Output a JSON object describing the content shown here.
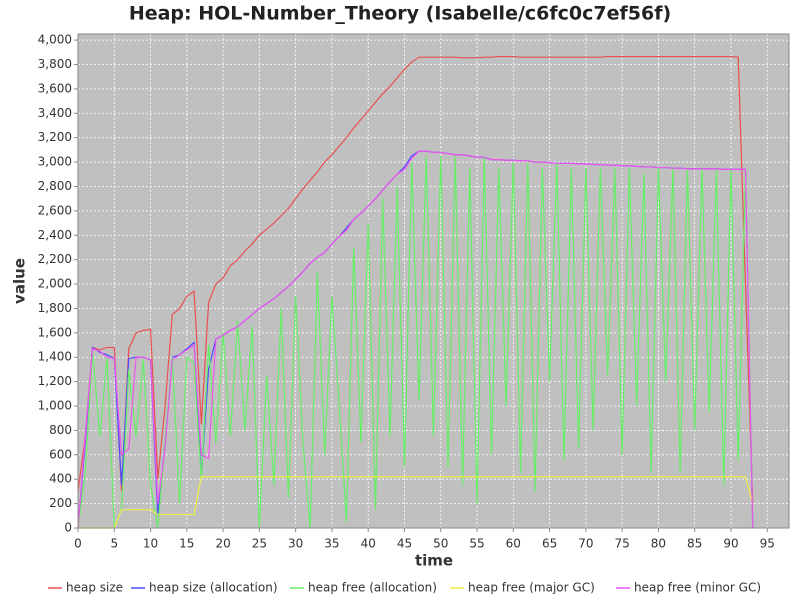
{
  "chart_data": {
    "type": "line",
    "title": "Heap: HOL-Number_Theory (Isabelle/c6fc0c7ef56f)",
    "x_label": "time",
    "y_label": "value",
    "xlim": [
      0,
      98
    ],
    "ylim": [
      0,
      4050
    ],
    "grid": true,
    "xticks": [
      0,
      5,
      10,
      15,
      20,
      25,
      30,
      35,
      40,
      45,
      50,
      55,
      60,
      65,
      70,
      75,
      80,
      85,
      90,
      95
    ],
    "yticks": [
      0,
      200,
      400,
      600,
      800,
      {
        "value": 1000,
        "label": "1,000"
      },
      {
        "value": 1200,
        "label": "1,200"
      },
      {
        "value": 1400,
        "label": "1,400"
      },
      {
        "value": 1600,
        "label": "1,600"
      },
      {
        "value": 1800,
        "label": "1,800"
      },
      {
        "value": 2000,
        "label": "2,000"
      },
      {
        "value": 2200,
        "label": "2,200"
      },
      {
        "value": 2400,
        "label": "2,400"
      },
      {
        "value": 2600,
        "label": "2,600"
      },
      {
        "value": 2800,
        "label": "2,800"
      },
      {
        "value": 3000,
        "label": "3,000"
      },
      {
        "value": 3200,
        "label": "3,200"
      },
      {
        "value": 3400,
        "label": "3,400"
      },
      {
        "value": 3600,
        "label": "3,600"
      },
      {
        "value": 3800,
        "label": "3,800"
      },
      {
        "value": 4000,
        "label": "4,000"
      }
    ],
    "x": [
      0,
      1,
      2,
      3,
      4,
      5,
      6,
      7,
      8,
      9,
      10,
      11,
      12,
      13,
      14,
      15,
      16,
      17,
      18,
      19,
      20,
      21,
      22,
      23,
      24,
      25,
      26,
      27,
      28,
      29,
      30,
      31,
      32,
      33,
      34,
      35,
      36,
      37,
      38,
      39,
      40,
      41,
      42,
      43,
      44,
      45,
      46,
      47,
      48,
      49,
      50,
      51,
      52,
      53,
      54,
      55,
      56,
      57,
      58,
      59,
      60,
      61,
      62,
      63,
      64,
      65,
      66,
      67,
      68,
      69,
      70,
      71,
      72,
      73,
      74,
      75,
      76,
      77,
      78,
      79,
      80,
      81,
      82,
      83,
      84,
      85,
      86,
      87,
      88,
      89,
      90,
      91,
      92,
      93
    ],
    "series": [
      {
        "name": "heap size",
        "color": "#e85050",
        "values": [
          300,
          750,
          1480,
          1460,
          1480,
          1480,
          300,
          1470,
          1600,
          1620,
          1630,
          400,
          1000,
          1750,
          1800,
          1900,
          1940,
          850,
          1850,
          2000,
          2050,
          2150,
          2200,
          2270,
          2330,
          2400,
          2450,
          2500,
          2560,
          2620,
          2700,
          2780,
          2850,
          2920,
          3000,
          3060,
          3130,
          3200,
          3280,
          3350,
          3420,
          3490,
          3560,
          3620,
          3690,
          3760,
          3820,
          3860,
          3860,
          3860,
          3860,
          3860,
          3860,
          3855,
          3855,
          3855,
          3860,
          3860,
          3865,
          3865,
          3865,
          3860,
          3860,
          3860,
          3860,
          3860,
          3860,
          3860,
          3860,
          3860,
          3860,
          3860,
          3860,
          3865,
          3865,
          3865,
          3865,
          3865,
          3865,
          3865,
          3865,
          3865,
          3865,
          3865,
          3865,
          3865,
          3865,
          3865,
          3865,
          3865,
          3865,
          3860,
          2000,
          200
        ]
      },
      {
        "name": "heap size (allocation)",
        "color": "#4a4aff",
        "values": [
          0,
          700,
          1480,
          1440,
          1420,
          1390,
          350,
          1390,
          1400,
          1400,
          1380,
          100,
          700,
          1400,
          1420,
          1470,
          1520,
          420,
          1300,
          1550,
          1580,
          1620,
          1650,
          1700,
          1750,
          1800,
          1840,
          1880,
          1930,
          1980,
          2040,
          2100,
          2170,
          2220,
          2260,
          2330,
          2390,
          2460,
          2530,
          2580,
          2640,
          2700,
          2770,
          2840,
          2900,
          2960,
          3050,
          3090,
          3090,
          3080,
          3080,
          3070,
          3060,
          3060,
          3050,
          3040,
          3040,
          3020,
          3020,
          3015,
          3015,
          3010,
          3010,
          3000,
          3000,
          2995,
          2990,
          2990,
          2990,
          2985,
          2985,
          2980,
          2980,
          2975,
          2975,
          2970,
          2970,
          2965,
          2960,
          2960,
          2955,
          2955,
          2950,
          2950,
          2945,
          2945,
          2945,
          2945,
          2945,
          2940,
          2940,
          2940,
          2940,
          0
        ]
      },
      {
        "name": "heap free (allocation)",
        "color": "#66ee66",
        "values": [
          0,
          450,
          1450,
          750,
          1400,
          0,
          150,
          1300,
          750,
          1380,
          350,
          0,
          700,
          1400,
          200,
          1400,
          1350,
          400,
          1500,
          700,
          1600,
          750,
          1700,
          800,
          1650,
          0,
          1250,
          350,
          1800,
          250,
          1900,
          700,
          0,
          2100,
          600,
          1900,
          1000,
          50,
          2300,
          700,
          2500,
          150,
          2700,
          750,
          2800,
          500,
          3000,
          1050,
          3050,
          750,
          3050,
          500,
          3050,
          350,
          2950,
          200,
          3050,
          600,
          2950,
          1000,
          3000,
          450,
          3000,
          300,
          2950,
          1200,
          3000,
          550,
          2950,
          650,
          2950,
          800,
          2950,
          1250,
          2950,
          600,
          2950,
          1000,
          2900,
          450,
          2950,
          1200,
          2950,
          450,
          2950,
          800,
          2950,
          950,
          2940,
          350,
          2940,
          550,
          2940,
          0
        ]
      },
      {
        "name": "heap free (major GC)",
        "color": "#eeee44",
        "values": [
          0,
          0,
          0,
          0,
          0,
          0,
          150,
          150,
          150,
          150,
          150,
          110,
          110,
          110,
          110,
          110,
          110,
          420,
          420,
          420,
          420,
          420,
          420,
          420,
          420,
          420,
          420,
          420,
          420,
          420,
          420,
          420,
          420,
          420,
          420,
          420,
          420,
          420,
          420,
          420,
          420,
          420,
          420,
          420,
          420,
          420,
          420,
          420,
          420,
          420,
          420,
          420,
          420,
          420,
          420,
          420,
          420,
          420,
          420,
          420,
          420,
          420,
          420,
          420,
          420,
          420,
          420,
          420,
          420,
          420,
          420,
          420,
          420,
          420,
          420,
          420,
          420,
          420,
          420,
          420,
          420,
          420,
          420,
          420,
          420,
          420,
          420,
          420,
          420,
          420,
          420,
          420,
          420,
          200
        ]
      },
      {
        "name": "heap free (minor GC)",
        "color": "#ee55ee",
        "values": [
          0,
          750,
          1470,
          1450,
          1400,
          1390,
          600,
          650,
          1400,
          1400,
          1380,
          200,
          650,
          1380,
          1420,
          1460,
          1500,
          600,
          570,
          1550,
          1580,
          1620,
          1650,
          1700,
          1750,
          1800,
          1840,
          1880,
          1930,
          1980,
          2040,
          2100,
          2170,
          2220,
          2260,
          2330,
          2390,
          2440,
          2530,
          2580,
          2640,
          2700,
          2770,
          2840,
          2900,
          2940,
          3030,
          3090,
          3090,
          3080,
          3080,
          3070,
          3060,
          3060,
          3050,
          3040,
          3040,
          3020,
          3020,
          3015,
          3015,
          3010,
          3010,
          3000,
          3000,
          2995,
          2990,
          2990,
          2990,
          2985,
          2985,
          2980,
          2980,
          2975,
          2975,
          2970,
          2970,
          2965,
          2960,
          2960,
          2955,
          2955,
          2950,
          2950,
          2945,
          2945,
          2945,
          2945,
          2945,
          2940,
          2940,
          2940,
          2940,
          0
        ]
      }
    ]
  }
}
